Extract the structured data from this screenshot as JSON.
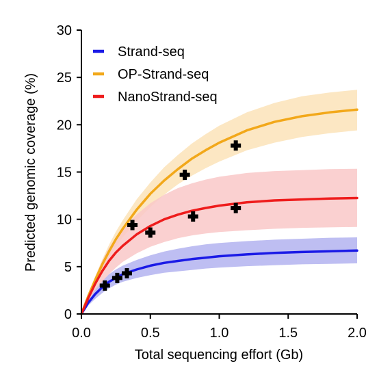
{
  "chart_data": {
    "type": "line",
    "title": "",
    "xlabel": "Total sequencing effort (Gb)",
    "ylabel": "Predicted genomic coverage (%)",
    "xlim": [
      0,
      2.0
    ],
    "ylim": [
      0,
      30
    ],
    "x_ticks": [
      {
        "value": 0,
        "label": "0.0"
      },
      {
        "value": 0.5,
        "label": "0.5"
      },
      {
        "value": 1.0,
        "label": "1.0"
      },
      {
        "value": 1.5,
        "label": "1.5"
      },
      {
        "value": 2.0,
        "label": "2.0"
      }
    ],
    "y_ticks": [
      {
        "value": 0,
        "label": "0"
      },
      {
        "value": 5,
        "label": "5"
      },
      {
        "value": 10,
        "label": "10"
      },
      {
        "value": 15,
        "label": "15"
      },
      {
        "value": 20,
        "label": "20"
      },
      {
        "value": 25,
        "label": "25"
      },
      {
        "value": 30,
        "label": "30"
      }
    ],
    "grid": false,
    "legend": "top-left",
    "x": [
      0,
      0.05,
      0.1,
      0.15,
      0.2,
      0.25,
      0.3,
      0.4,
      0.5,
      0.6,
      0.7,
      0.8,
      0.9,
      1.0,
      1.2,
      1.4,
      1.6,
      1.8,
      2.0
    ],
    "series": [
      {
        "name": "Strand-seq",
        "color": "#1a1ae6",
        "band_color": "#b3b3f0",
        "values": [
          0,
          1.2,
          2.1,
          2.8,
          3.4,
          3.8,
          4.2,
          4.7,
          5.1,
          5.4,
          5.6,
          5.8,
          5.95,
          6.1,
          6.3,
          6.45,
          6.55,
          6.62,
          6.7
        ],
        "lower": [
          0,
          0.9,
          1.6,
          2.2,
          2.7,
          3.1,
          3.4,
          3.8,
          4.1,
          4.35,
          4.5,
          4.65,
          4.8,
          4.9,
          5.05,
          5.15,
          5.25,
          5.3,
          5.35
        ],
        "upper": [
          0,
          1.6,
          2.7,
          3.5,
          4.2,
          4.7,
          5.1,
          5.7,
          6.2,
          6.6,
          6.9,
          7.15,
          7.35,
          7.5,
          7.7,
          7.85,
          7.95,
          8.05,
          8.1
        ],
        "points": [
          [
            0.17,
            3.0
          ],
          [
            0.26,
            3.8
          ],
          [
            0.33,
            4.3
          ]
        ]
      },
      {
        "name": "OP-Strand-seq",
        "color": "#f2a81a",
        "band_color": "#fbe3b8",
        "values": [
          0,
          1.9,
          3.6,
          5.2,
          6.6,
          7.9,
          9.0,
          11.0,
          12.7,
          14.1,
          15.3,
          16.4,
          17.3,
          18.1,
          19.4,
          20.3,
          20.9,
          21.3,
          21.6
        ],
        "lower": [
          0,
          1.7,
          3.3,
          4.7,
          6.0,
          7.1,
          8.1,
          9.8,
          11.3,
          12.6,
          13.7,
          14.6,
          15.4,
          16.1,
          17.3,
          18.1,
          18.7,
          19.1,
          19.4
        ],
        "upper": [
          0,
          2.1,
          4.0,
          5.7,
          7.3,
          8.7,
          9.9,
          12.1,
          13.9,
          15.5,
          16.8,
          18.0,
          19.0,
          19.9,
          21.3,
          22.3,
          23.0,
          23.4,
          23.7
        ],
        "points": [
          [
            0.37,
            9.4
          ],
          [
            0.75,
            14.7
          ],
          [
            1.12,
            17.8
          ]
        ]
      },
      {
        "name": "NanoStrand-seq",
        "color": "#ee1c1c",
        "band_color": "#f9c8c8",
        "values": [
          0,
          1.7,
          3.2,
          4.5,
          5.6,
          6.5,
          7.2,
          8.4,
          9.3,
          10.0,
          10.5,
          10.9,
          11.2,
          11.45,
          11.8,
          12.0,
          12.1,
          12.2,
          12.25
        ],
        "lower": [
          0,
          1.35,
          2.5,
          3.4,
          4.2,
          4.9,
          5.5,
          6.4,
          7.1,
          7.6,
          8.0,
          8.3,
          8.5,
          8.65,
          8.85,
          9.0,
          9.1,
          9.15,
          9.2
        ],
        "upper": [
          0,
          2.05,
          3.9,
          5.6,
          7.0,
          8.1,
          9.0,
          10.5,
          11.7,
          12.6,
          13.3,
          13.8,
          14.2,
          14.5,
          14.9,
          15.1,
          15.2,
          15.3,
          15.35
        ],
        "points": [
          [
            0.5,
            8.6
          ],
          [
            0.81,
            10.3
          ],
          [
            1.12,
            11.2
          ]
        ]
      }
    ]
  }
}
